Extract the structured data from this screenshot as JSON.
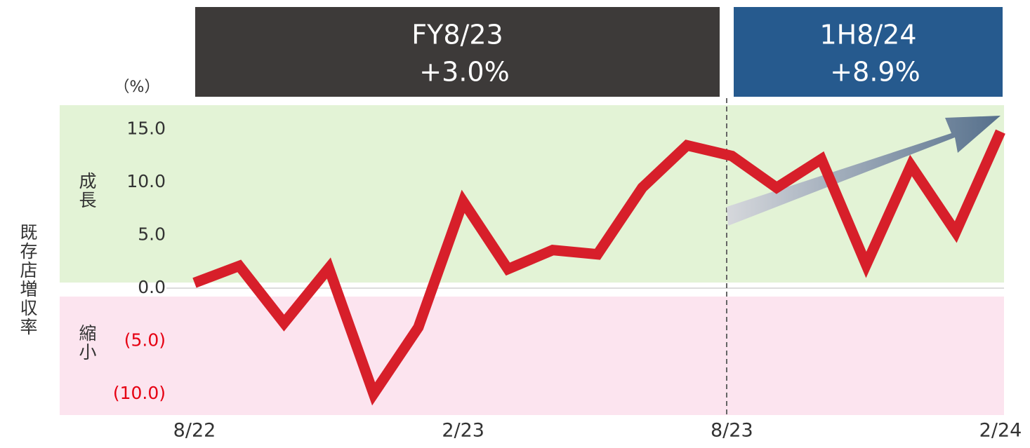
{
  "chart_data": {
    "type": "line",
    "y_label": "既存店増収率",
    "unit_label": "（%）",
    "zone_labels": {
      "growth": "成長",
      "shrink": "縮小"
    },
    "annotations": [
      {
        "title": "FY8/23",
        "value": "+3.0%",
        "color": "#3d3a39"
      },
      {
        "title": "1H8/24",
        "value": "+8.9%",
        "color": "#265a8e"
      }
    ],
    "categories": [
      "8/22",
      null,
      null,
      null,
      null,
      null,
      "2/23",
      null,
      null,
      null,
      null,
      null,
      "8/23",
      null,
      null,
      null,
      null,
      null,
      "2/24"
    ],
    "series": [
      {
        "name": "既存店増収率",
        "color": "#d71f2a",
        "values": [
          0.5,
          2.1,
          -3.3,
          1.9,
          -10.0,
          -3.7,
          8.2,
          1.8,
          3.6,
          3.2,
          9.5,
          13.5,
          12.5,
          9.5,
          12.2,
          2.2,
          11.6,
          5.3,
          14.8
        ]
      }
    ],
    "ylim": [
      -12,
      17.3
    ],
    "yticks": [
      {
        "value": -10,
        "label": "(10.0)"
      },
      {
        "value": -5,
        "label": "(5.0)"
      },
      {
        "value": 0,
        "label": "0.0"
      },
      {
        "value": 5,
        "label": "5.0"
      },
      {
        "value": 10,
        "label": "10.0"
      },
      {
        "value": 15,
        "label": "15.0"
      }
    ],
    "negative_tick_color": "#e60012",
    "growth_color": "#e3f3d6",
    "shrink_color": "#fce4ef",
    "grid": false
  }
}
